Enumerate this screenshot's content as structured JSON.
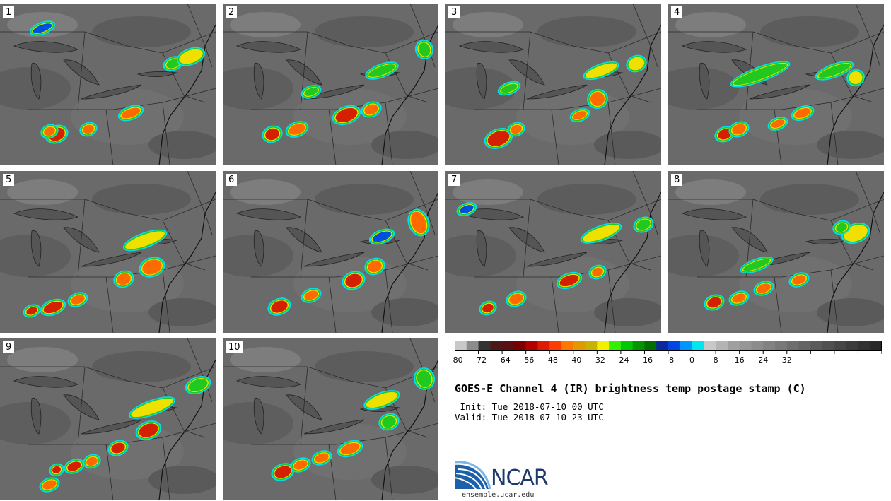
{
  "panels": [
    {
      "label": "1"
    },
    {
      "label": "2"
    },
    {
      "label": "3"
    },
    {
      "label": "4"
    },
    {
      "label": "5"
    },
    {
      "label": "6"
    },
    {
      "label": "7"
    },
    {
      "label": "8"
    },
    {
      "label": "9"
    },
    {
      "label": "10"
    }
  ],
  "colorbar": {
    "colors": [
      "#c8c8c8",
      "#8c8c8c",
      "#333333",
      "#4a1a1a",
      "#5a1010",
      "#7a0000",
      "#b40000",
      "#e01a00",
      "#ff3c00",
      "#ff7800",
      "#e09a00",
      "#c8b400",
      "#f0f000",
      "#32f000",
      "#00c800",
      "#009600",
      "#006e00",
      "#0a28a0",
      "#0046e6",
      "#0096ff",
      "#00e6f0",
      "#c8c8c8",
      "#b4b4b4",
      "#a0a0a0",
      "#969696",
      "#8c8c8c",
      "#828282",
      "#787878",
      "#6e6e6e",
      "#646464",
      "#5a5a5a",
      "#505050",
      "#464646",
      "#3c3c3c",
      "#323232",
      "#282828"
    ],
    "ticks": [
      "−80",
      "−72",
      "−64",
      "−56",
      "−48",
      "−40",
      "−32",
      "−24",
      "−16",
      "−8",
      "0",
      "8",
      "16",
      "24",
      "32"
    ]
  },
  "title": "GOES-E Channel 4 (IR) brightness temp postage stamp (C)",
  "init": " Init: Tue 2018-07-10 00 UTC",
  "valid": "Valid: Tue 2018-07-10 23 UTC",
  "logo": {
    "text": "NCAR",
    "site": "ensemble.ucar.edu"
  },
  "storm_colors": {
    "red": "#d42000",
    "orange": "#ff6a00",
    "yellow": "#f0e000",
    "green": "#20c820",
    "blue": "#0050e0",
    "cyan": "#00e0f0"
  }
}
